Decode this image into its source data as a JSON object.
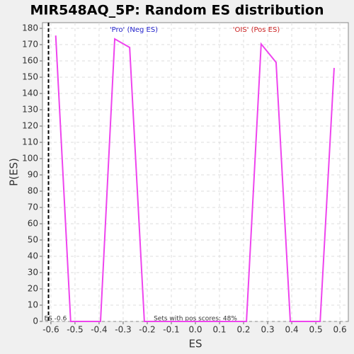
{
  "chart_data": {
    "type": "line",
    "title": "MIR548AQ_5P: Random ES distribution",
    "xlabel": "ES",
    "ylabel": "P(ES)",
    "annotations": [
      "'Pro' (Neg ES)",
      "'OIS' (Pos ES)",
      "Sets with pos scores: 48%"
    ],
    "annotation_colors": [
      "#2222cc",
      "#cc2222",
      "#333333"
    ],
    "observed_es": {
      "value": -0.61,
      "label": "ES -0.6"
    },
    "x": [
      -0.58,
      -0.518,
      -0.394,
      -0.335,
      -0.273,
      -0.212,
      0.212,
      0.273,
      0.335,
      0.394,
      0.518,
      0.576
    ],
    "series": [
      {
        "name": "P(ES)",
        "color": "#ee44ee",
        "values": [
          175.6,
          0,
          0,
          173.5,
          168.3,
          0,
          0,
          170.4,
          159.1,
          0,
          0,
          155.7
        ]
      }
    ],
    "xlim": [
      -0.635,
      0.635
    ],
    "ylim": [
      0,
      183.5
    ],
    "xticks": [
      -0.6,
      -0.5,
      -0.4,
      -0.3,
      -0.2,
      -0.1,
      {
        "value": 0,
        "label": "0.0"
      },
      0.1,
      0.2,
      0.3,
      0.4,
      0.5,
      0.6
    ],
    "yticks": [
      0,
      10,
      20,
      30,
      40,
      50,
      60,
      70,
      80,
      90,
      100,
      110,
      120,
      130,
      140,
      150,
      160,
      170,
      180
    ],
    "grid": true
  }
}
